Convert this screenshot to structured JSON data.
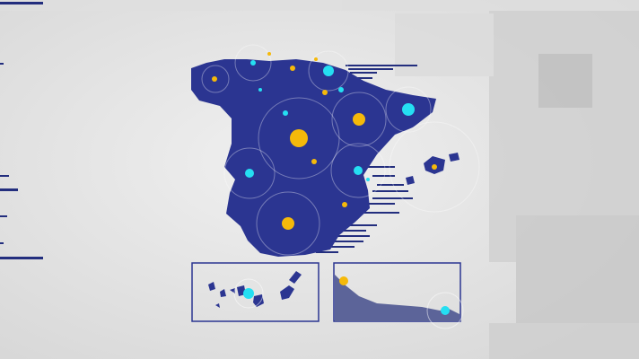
{
  "colors": {
    "background": "#e4e4e4",
    "map_fill": "#2b3591",
    "map_shadow": "#233080",
    "yellow_marker": "#f5b90a",
    "cyan_marker": "#25dff2",
    "line_navy": "#232e7e",
    "inset_border": "#2b3591"
  },
  "markers": {
    "yellow_count": 11,
    "cyan_count": 9
  },
  "insets": [
    "canary-islands",
    "ceuta-melilla-coast"
  ]
}
